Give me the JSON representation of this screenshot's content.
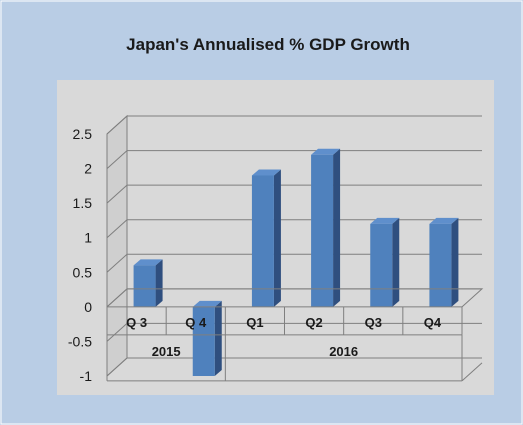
{
  "colors": {
    "background": "#b9cde5",
    "plot_area": "#d9d9d9",
    "bar_front": "#4f81bd",
    "bar_side": "#2f4f7f",
    "bar_top": "#5f8fcc",
    "grid": "#7f7f7f"
  },
  "chart_data": {
    "type": "bar",
    "title": "Japan's Annualised % GDP Growth",
    "xlabel": "",
    "ylabel": "",
    "categories": [
      "Q 3",
      "Q 4",
      "Q1",
      "Q2",
      "Q3",
      "Q4"
    ],
    "groups": [
      {
        "label": "2015",
        "span": [
          0,
          1
        ]
      },
      {
        "label": "2016",
        "span": [
          2,
          5
        ]
      }
    ],
    "values": [
      0.6,
      -1.0,
      1.9,
      2.2,
      1.2,
      1.2
    ],
    "ylim": [
      -1,
      2.5
    ],
    "yticks": [
      "2.5",
      "2",
      "1.5",
      "1",
      "0.5",
      "0",
      "-0.5",
      "-1"
    ],
    "grid": true,
    "legend": "none",
    "three_d": true
  }
}
